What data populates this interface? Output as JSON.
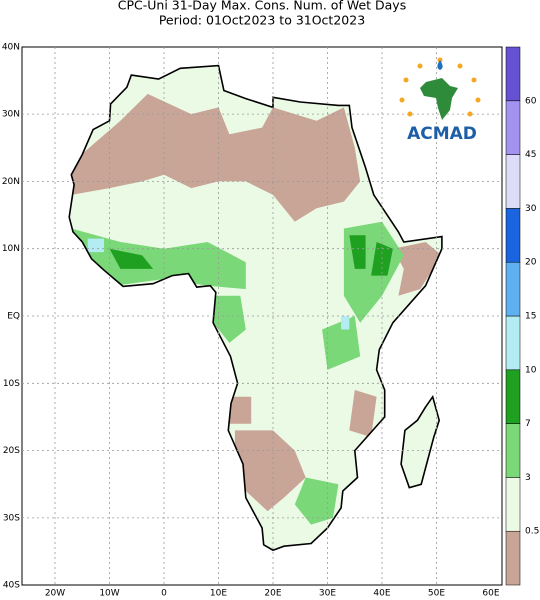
{
  "header": {
    "title": "CPC-Uni 31-Day Max. Cons. Num. of Wet Days",
    "subtitle": "Period: 01Oct2023 to 31Oct2023"
  },
  "map": {
    "lat_labels": [
      "40N",
      "30N",
      "20N",
      "10N",
      "EQ",
      "10S",
      "20S",
      "30S",
      "40S"
    ],
    "lon_labels": [
      "20W",
      "10W",
      "0",
      "10E",
      "20E",
      "30E",
      "40E",
      "50E",
      "60E"
    ]
  },
  "legend": {
    "levels": [
      0.5,
      3,
      7,
      10,
      15,
      20,
      30,
      45,
      60
    ],
    "colors": [
      "#c9a598",
      "#ebfae5",
      "#7ad878",
      "#20a020",
      "#b4ecf4",
      "#5fb0f0",
      "#1a64e0",
      "#dcdcf8",
      "#a392f0",
      "#6452d2"
    ]
  },
  "logo": {
    "text": "ACMAD"
  }
}
